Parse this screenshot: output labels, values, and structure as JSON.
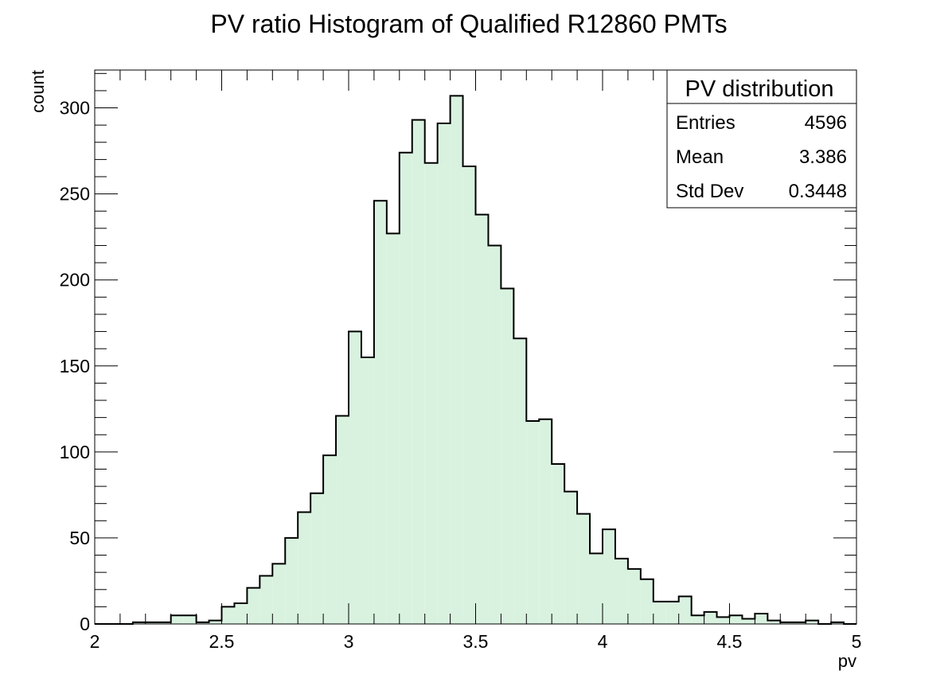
{
  "chart_data": {
    "type": "histogram",
    "title": "PV ratio Histogram of Qualified R12860 PMTs",
    "xlabel": "pv",
    "ylabel": "count",
    "xlim": [
      2,
      5
    ],
    "ylim": [
      0,
      322
    ],
    "x_ticks": [
      "2",
      "2.5",
      "3",
      "3.5",
      "4",
      "4.5",
      "5"
    ],
    "y_ticks": [
      "0",
      "50",
      "100",
      "150",
      "200",
      "250",
      "300"
    ],
    "bin_width": 0.05,
    "bin_start": 2.0,
    "values": [
      0,
      0,
      0,
      1,
      1,
      1,
      5,
      5,
      1,
      2,
      10,
      12,
      21,
      28,
      35,
      50,
      65,
      76,
      98,
      121,
      170,
      155,
      246,
      227,
      274,
      293,
      268,
      291,
      307,
      266,
      238,
      220,
      195,
      166,
      118,
      119,
      93,
      77,
      64,
      41,
      55,
      38,
      32,
      26,
      13,
      13,
      16,
      5,
      7,
      4,
      5,
      3,
      6,
      2,
      1,
      1,
      2,
      0,
      1,
      0
    ],
    "stats_box": {
      "title": "PV distribution",
      "rows": [
        {
          "label": "Entries",
          "value": "4596"
        },
        {
          "label": "Mean",
          "value": "3.386"
        },
        {
          "label": "Std Dev",
          "value": "0.3448"
        }
      ]
    },
    "grid": false,
    "fill_color": "#d9f2e0",
    "line_color": "#000000"
  }
}
